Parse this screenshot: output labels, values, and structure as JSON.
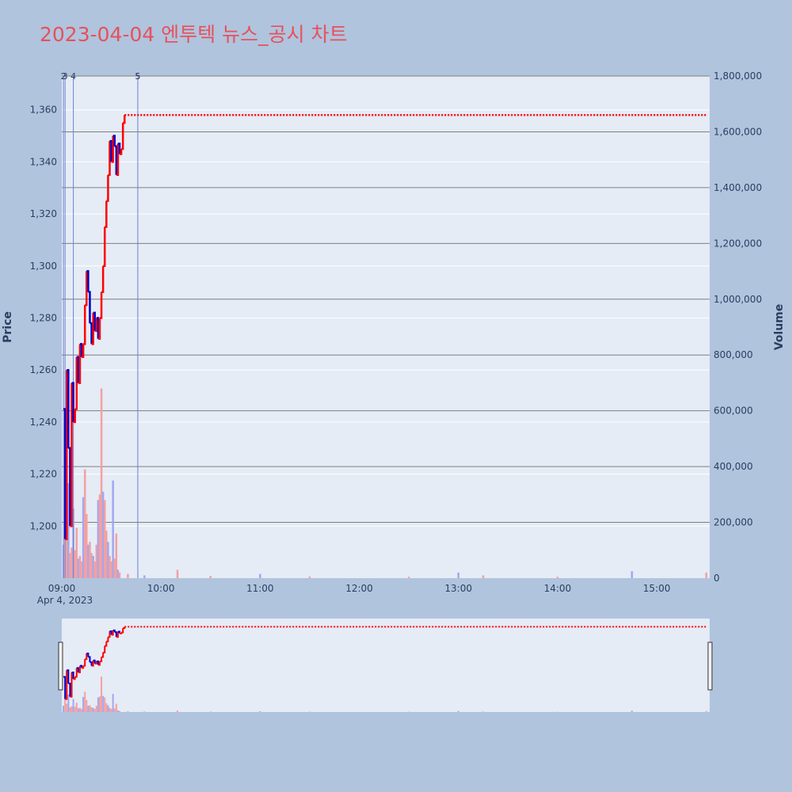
{
  "title": "2023-04-04 엔투텍 뉴스_공시 차트",
  "colors": {
    "background": "#b0c4de",
    "plot_bg": "#e5ecf6",
    "title": "#e8505b",
    "up": "#ff0000",
    "down": "#0000cc",
    "vol_up": "#f4a0a0",
    "vol_down": "#a0a8f0",
    "news_line": "#7080d0",
    "hgrid": "#7f7f7f"
  },
  "chart_data": {
    "type": "line",
    "date_label": "Apr 4, 2023",
    "xlabel": "",
    "ylabel": "Price",
    "y2label": "Volume",
    "x_ticks": [
      "09:00",
      "10:00",
      "11:00",
      "12:00",
      "13:00",
      "14:00",
      "15:00"
    ],
    "y_ticks": [
      "1,200",
      "1,220",
      "1,240",
      "1,260",
      "1,280",
      "1,300",
      "1,320",
      "1,340",
      "1,360"
    ],
    "y2_ticks": [
      "0",
      "200,000",
      "400,000",
      "600,000",
      "800,000",
      "1,000,000",
      "1,200,000",
      "1,400,000",
      "1,600,000",
      "1,800,000"
    ],
    "xlim": [
      "09:00",
      "15:32"
    ],
    "ylim": [
      1180,
      1373
    ],
    "y2lim": [
      0,
      1800000
    ],
    "news_markers": [
      {
        "label": "2",
        "time": "09:01"
      },
      {
        "label": "3",
        "time": "09:02"
      },
      {
        "label": "4",
        "time": "09:07"
      },
      {
        "label": "5",
        "time": "09:46"
      },
      {
        "label": "5",
        "time": "09:46"
      }
    ],
    "price_series": [
      {
        "t": "09:01",
        "p": 1245
      },
      {
        "t": "09:02",
        "p": 1195
      },
      {
        "t": "09:03",
        "p": 1260
      },
      {
        "t": "09:04",
        "p": 1230
      },
      {
        "t": "09:05",
        "p": 1200
      },
      {
        "t": "09:06",
        "p": 1255
      },
      {
        "t": "09:07",
        "p": 1240
      },
      {
        "t": "09:08",
        "p": 1245
      },
      {
        "t": "09:09",
        "p": 1265
      },
      {
        "t": "09:10",
        "p": 1255
      },
      {
        "t": "09:11",
        "p": 1270
      },
      {
        "t": "09:12",
        "p": 1265
      },
      {
        "t": "09:13",
        "p": 1270
      },
      {
        "t": "09:14",
        "p": 1285
      },
      {
        "t": "09:15",
        "p": 1298
      },
      {
        "t": "09:16",
        "p": 1290
      },
      {
        "t": "09:17",
        "p": 1278
      },
      {
        "t": "09:18",
        "p": 1270
      },
      {
        "t": "09:19",
        "p": 1282
      },
      {
        "t": "09:20",
        "p": 1275
      },
      {
        "t": "09:21",
        "p": 1280
      },
      {
        "t": "09:22",
        "p": 1272
      },
      {
        "t": "09:23",
        "p": 1280
      },
      {
        "t": "09:24",
        "p": 1290
      },
      {
        "t": "09:25",
        "p": 1300
      },
      {
        "t": "09:26",
        "p": 1315
      },
      {
        "t": "09:27",
        "p": 1325
      },
      {
        "t": "09:28",
        "p": 1335
      },
      {
        "t": "09:29",
        "p": 1348
      },
      {
        "t": "09:30",
        "p": 1340
      },
      {
        "t": "09:31",
        "p": 1350
      },
      {
        "t": "09:32",
        "p": 1346
      },
      {
        "t": "09:33",
        "p": 1335
      },
      {
        "t": "09:34",
        "p": 1347
      },
      {
        "t": "09:35",
        "p": 1343
      },
      {
        "t": "09:36",
        "p": 1345
      },
      {
        "t": "09:37",
        "p": 1355
      },
      {
        "t": "09:38",
        "p": 1358
      },
      {
        "t": "15:30",
        "p": 1358
      }
    ],
    "volume_series": [
      {
        "t": "09:01",
        "v": 120000
      },
      {
        "t": "09:02",
        "v": 260000
      },
      {
        "t": "09:03",
        "v": 160000
      },
      {
        "t": "09:04",
        "v": 340000
      },
      {
        "t": "09:05",
        "v": 90000
      },
      {
        "t": "09:06",
        "v": 110000
      },
      {
        "t": "09:07",
        "v": 250000
      },
      {
        "t": "09:08",
        "v": 100000
      },
      {
        "t": "09:09",
        "v": 180000
      },
      {
        "t": "09:10",
        "v": 70000
      },
      {
        "t": "09:11",
        "v": 80000
      },
      {
        "t": "09:12",
        "v": 60000
      },
      {
        "t": "09:13",
        "v": 290000
      },
      {
        "t": "09:14",
        "v": 390000
      },
      {
        "t": "09:15",
        "v": 230000
      },
      {
        "t": "09:16",
        "v": 120000
      },
      {
        "t": "09:17",
        "v": 130000
      },
      {
        "t": "09:18",
        "v": 90000
      },
      {
        "t": "09:19",
        "v": 80000
      },
      {
        "t": "09:20",
        "v": 60000
      },
      {
        "t": "09:21",
        "v": 120000
      },
      {
        "t": "09:22",
        "v": 280000
      },
      {
        "t": "09:23",
        "v": 300000
      },
      {
        "t": "09:24",
        "v": 680000
      },
      {
        "t": "09:25",
        "v": 310000
      },
      {
        "t": "09:26",
        "v": 280000
      },
      {
        "t": "09:27",
        "v": 170000
      },
      {
        "t": "09:28",
        "v": 130000
      },
      {
        "t": "09:29",
        "v": 80000
      },
      {
        "t": "09:30",
        "v": 60000
      },
      {
        "t": "09:31",
        "v": 350000
      },
      {
        "t": "09:32",
        "v": 70000
      },
      {
        "t": "09:33",
        "v": 160000
      },
      {
        "t": "09:34",
        "v": 30000
      },
      {
        "t": "09:35",
        "v": 20000
      },
      {
        "t": "09:40",
        "v": 15000
      },
      {
        "t": "09:50",
        "v": 10000
      },
      {
        "t": "10:10",
        "v": 30000
      },
      {
        "t": "10:30",
        "v": 8000
      },
      {
        "t": "11:00",
        "v": 15000
      },
      {
        "t": "11:30",
        "v": 6000
      },
      {
        "t": "12:30",
        "v": 5000
      },
      {
        "t": "13:00",
        "v": 20000
      },
      {
        "t": "13:15",
        "v": 10000
      },
      {
        "t": "14:00",
        "v": 5000
      },
      {
        "t": "14:45",
        "v": 25000
      },
      {
        "t": "15:30",
        "v": 20000
      }
    ]
  }
}
